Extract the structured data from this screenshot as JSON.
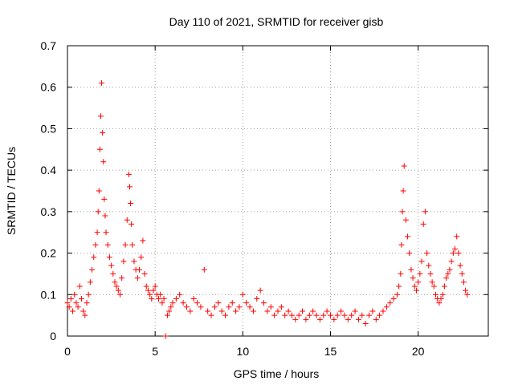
{
  "chart_data": {
    "type": "scatter",
    "title": "Day 110 of 2021, SRMTID for receiver gisb",
    "xlabel": "GPS time / hours",
    "ylabel": "SRMTID / TECUs",
    "xlim": [
      0,
      24
    ],
    "ylim": [
      0,
      0.7
    ],
    "x_ticks": [
      0,
      5,
      10,
      15,
      20
    ],
    "x_tick_labels": [
      "0",
      "5",
      "10",
      "15",
      "20"
    ],
    "y_ticks": [
      0,
      0.1,
      0.2,
      0.3,
      0.4,
      0.5,
      0.6,
      0.7
    ],
    "y_tick_labels": [
      "0",
      "0.1",
      "0.2",
      "0.3",
      "0.4",
      "0.5",
      "0.6",
      "0.7"
    ],
    "grid": true,
    "marker": "plus",
    "marker_color": "#ff0000",
    "series": [
      {
        "name": "SRMTID",
        "x": [
          0.0,
          0.1,
          0.2,
          0.3,
          0.4,
          0.5,
          0.6,
          0.7,
          0.8,
          0.9,
          1.0,
          1.1,
          1.2,
          1.3,
          1.4,
          1.5,
          1.6,
          1.7,
          1.75,
          1.8,
          1.85,
          1.9,
          1.95,
          2.0,
          2.05,
          2.1,
          2.15,
          2.2,
          2.3,
          2.4,
          2.5,
          2.6,
          2.7,
          2.8,
          2.9,
          3.0,
          3.1,
          3.2,
          3.3,
          3.4,
          3.5,
          3.55,
          3.6,
          3.65,
          3.7,
          3.8,
          3.9,
          4.0,
          4.1,
          4.2,
          4.3,
          4.4,
          4.5,
          4.6,
          4.7,
          4.8,
          4.9,
          5.0,
          5.1,
          5.2,
          5.3,
          5.4,
          5.5,
          5.6,
          5.7,
          5.8,
          5.9,
          6.0,
          6.2,
          6.4,
          6.6,
          6.8,
          7.0,
          7.2,
          7.4,
          7.6,
          7.8,
          8.0,
          8.2,
          8.4,
          8.6,
          8.8,
          9.0,
          9.2,
          9.4,
          9.6,
          9.8,
          10.0,
          10.2,
          10.4,
          10.6,
          10.8,
          11.0,
          11.2,
          11.4,
          11.6,
          11.8,
          12.0,
          12.2,
          12.4,
          12.6,
          12.8,
          13.0,
          13.2,
          13.4,
          13.6,
          13.8,
          14.0,
          14.2,
          14.4,
          14.6,
          14.8,
          15.0,
          15.2,
          15.4,
          15.6,
          15.8,
          16.0,
          16.2,
          16.4,
          16.6,
          16.8,
          17.0,
          17.2,
          17.4,
          17.6,
          17.8,
          18.0,
          18.2,
          18.4,
          18.6,
          18.8,
          18.9,
          19.0,
          19.05,
          19.1,
          19.15,
          19.2,
          19.3,
          19.4,
          19.5,
          19.6,
          19.7,
          19.8,
          19.9,
          20.0,
          20.1,
          20.2,
          20.3,
          20.4,
          20.5,
          20.6,
          20.7,
          20.8,
          20.9,
          21.0,
          21.1,
          21.2,
          21.3,
          21.4,
          21.5,
          21.6,
          21.7,
          21.8,
          21.9,
          22.0,
          22.1,
          22.2,
          22.3,
          22.4,
          22.5,
          22.6,
          22.7,
          22.8
        ],
        "y": [
          0.08,
          0.07,
          0.09,
          0.06,
          0.1,
          0.08,
          0.07,
          0.12,
          0.09,
          0.06,
          0.05,
          0.08,
          0.1,
          0.13,
          0.16,
          0.19,
          0.22,
          0.25,
          0.3,
          0.35,
          0.45,
          0.53,
          0.61,
          0.49,
          0.42,
          0.33,
          0.29,
          0.25,
          0.22,
          0.19,
          0.17,
          0.15,
          0.13,
          0.12,
          0.11,
          0.1,
          0.14,
          0.18,
          0.22,
          0.28,
          0.39,
          0.36,
          0.32,
          0.27,
          0.22,
          0.18,
          0.16,
          0.14,
          0.16,
          0.19,
          0.23,
          0.15,
          0.12,
          0.11,
          0.1,
          0.09,
          0.11,
          0.12,
          0.1,
          0.09,
          0.1,
          0.08,
          0.09,
          0.0,
          0.05,
          0.06,
          0.07,
          0.08,
          0.09,
          0.1,
          0.08,
          0.07,
          0.06,
          0.09,
          0.08,
          0.07,
          0.16,
          0.06,
          0.05,
          0.07,
          0.08,
          0.06,
          0.05,
          0.07,
          0.08,
          0.06,
          0.07,
          0.1,
          0.08,
          0.07,
          0.06,
          0.09,
          0.11,
          0.08,
          0.06,
          0.07,
          0.05,
          0.06,
          0.07,
          0.05,
          0.06,
          0.05,
          0.04,
          0.05,
          0.06,
          0.04,
          0.05,
          0.06,
          0.05,
          0.04,
          0.05,
          0.06,
          0.05,
          0.04,
          0.05,
          0.06,
          0.05,
          0.04,
          0.05,
          0.06,
          0.04,
          0.05,
          0.03,
          0.05,
          0.06,
          0.04,
          0.05,
          0.06,
          0.07,
          0.08,
          0.09,
          0.1,
          0.12,
          0.15,
          0.22,
          0.3,
          0.35,
          0.41,
          0.28,
          0.24,
          0.2,
          0.16,
          0.14,
          0.12,
          0.11,
          0.13,
          0.15,
          0.18,
          0.27,
          0.3,
          0.2,
          0.17,
          0.15,
          0.13,
          0.12,
          0.1,
          0.09,
          0.08,
          0.09,
          0.1,
          0.12,
          0.14,
          0.15,
          0.16,
          0.18,
          0.2,
          0.21,
          0.24,
          0.2,
          0.17,
          0.15,
          0.13,
          0.11,
          0.1
        ]
      }
    ]
  }
}
